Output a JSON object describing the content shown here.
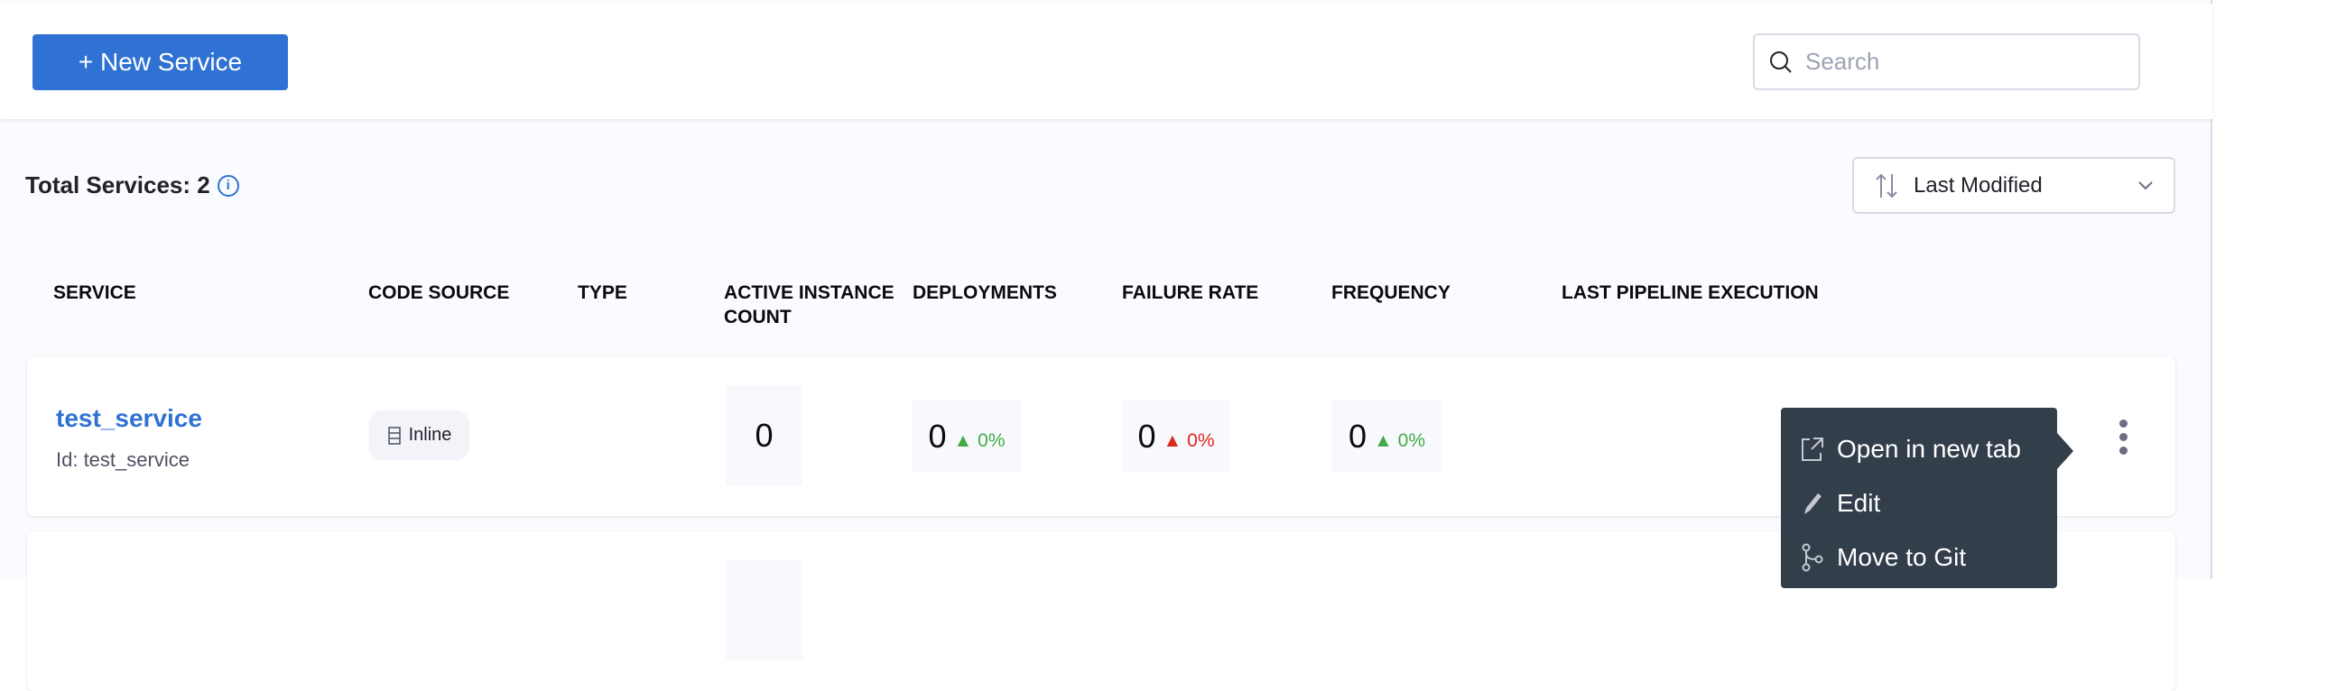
{
  "toolbar": {
    "new_service_label": "+ New Service",
    "search_placeholder": "Search"
  },
  "summary": {
    "total_label": "Total Services: 2"
  },
  "sort": {
    "selected": "Last Modified"
  },
  "table": {
    "headers": [
      "SERVICE",
      "CODE SOURCE",
      "TYPE",
      "ACTIVE INSTANCE COUNT",
      "DEPLOYMENTS",
      "FAILURE RATE",
      "FREQUENCY",
      "LAST PIPELINE EXECUTION"
    ],
    "rows": [
      {
        "name": "test_service",
        "id": "Id: test_service",
        "code_source": "Inline",
        "active_instances": "0",
        "deployments": "0",
        "deployments_change": "0%",
        "failure_rate": "0",
        "failure_rate_change": "0%",
        "frequency": "0",
        "frequency_change": "0%"
      }
    ]
  },
  "context_menu": {
    "items": [
      {
        "label": "Open in new tab",
        "icon": "external-link-icon"
      },
      {
        "label": "Edit",
        "icon": "pencil-icon"
      },
      {
        "label": "Move to Git",
        "icon": "git-branch-icon"
      }
    ]
  },
  "colors": {
    "accent": "#2f72d3",
    "up": "#42ab45",
    "down": "#da291d",
    "menu_bg": "#333e4b"
  }
}
